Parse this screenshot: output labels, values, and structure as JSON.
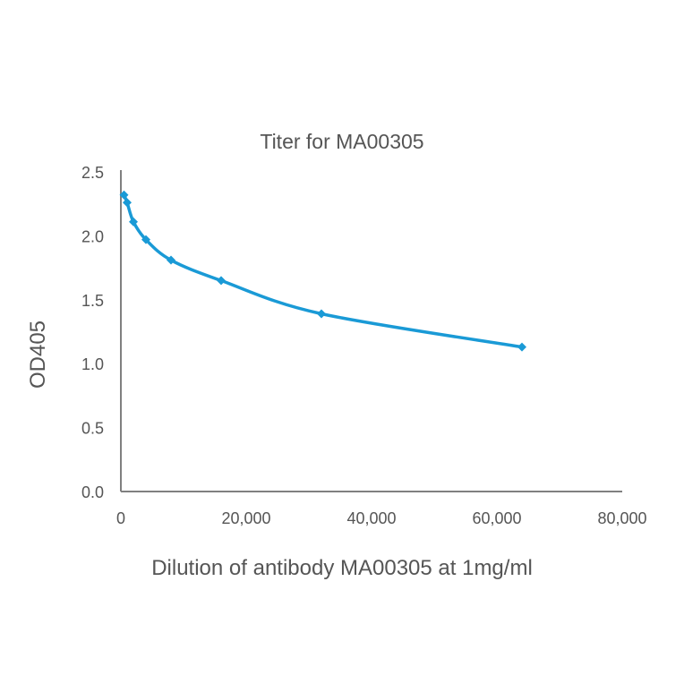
{
  "chart_data": {
    "type": "line",
    "title": "Titer for MA00305",
    "xlabel": "Dilution of antibody MA00305 at 1mg/ml",
    "ylabel": "OD405",
    "xlim": [
      0,
      80000
    ],
    "ylim": [
      0,
      2.5
    ],
    "x_ticks": [
      "0",
      "20,000",
      "40,000",
      "60,000",
      "80,000"
    ],
    "y_ticks": [
      "0.0",
      "0.5",
      "1.0",
      "1.5",
      "2.0",
      "2.5"
    ],
    "grid": false,
    "legend": null,
    "marker": "diamond",
    "color": "#1a9ad6",
    "series": [
      {
        "name": "MA00305",
        "x": [
          500,
          1000,
          2000,
          4000,
          8000,
          16000,
          32000,
          64000
        ],
        "values": [
          2.32,
          2.26,
          2.11,
          1.97,
          1.81,
          1.65,
          1.39,
          1.13
        ]
      }
    ]
  }
}
